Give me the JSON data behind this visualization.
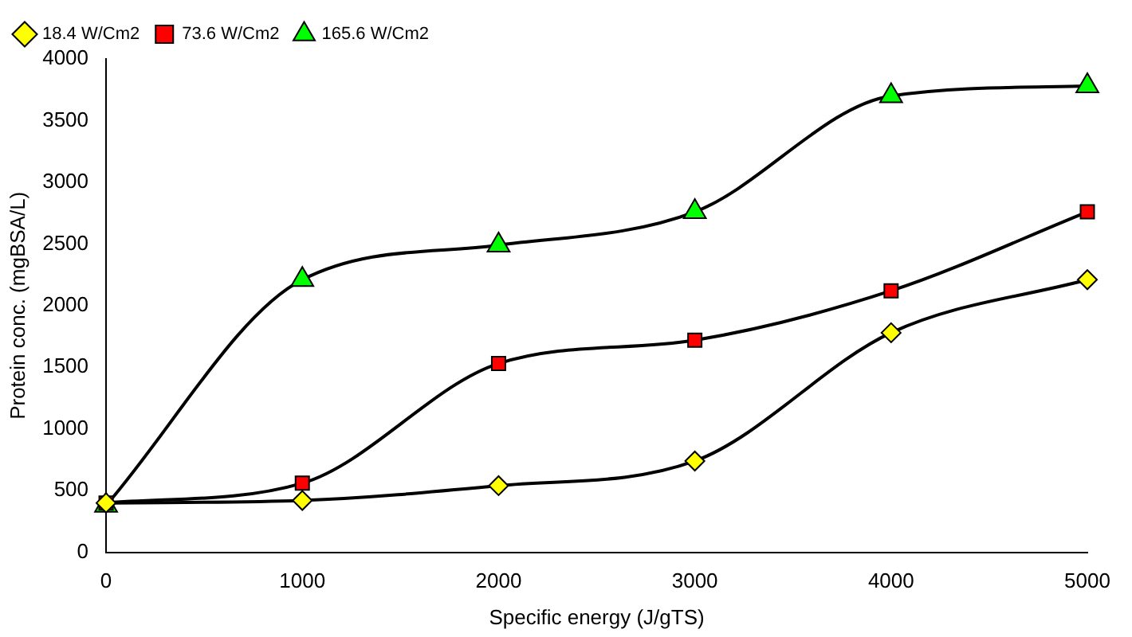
{
  "chart_data": {
    "type": "line",
    "xlabel": "Specific energy (J/gTS)",
    "ylabel": "Protein conc. (mgBSA/L)",
    "x": [
      0,
      1000,
      2000,
      3000,
      4000,
      5000
    ],
    "series": [
      {
        "name": "18.4 W/Cm2",
        "color": "#ffff00",
        "marker": "diamond",
        "values": [
          400,
          420,
          540,
          740,
          1780,
          2210
        ]
      },
      {
        "name": "73.6 W/Cm2",
        "color": "#ff0000",
        "marker": "square",
        "values": [
          400,
          560,
          1530,
          1720,
          2120,
          2760
        ]
      },
      {
        "name": "165.6 W/Cm2",
        "color": "#00ff00",
        "marker": "triangle",
        "values": [
          380,
          2210,
          2490,
          2760,
          3700,
          3780
        ]
      }
    ],
    "xlim": [
      0,
      5000
    ],
    "xticks": [
      0,
      1000,
      2000,
      3000,
      4000,
      5000
    ],
    "ylim": [
      0,
      4000
    ],
    "yticks": [
      0,
      500,
      1000,
      1500,
      2000,
      2500,
      3000,
      3500,
      4000
    ],
    "grid": false,
    "legend": "top left",
    "line_style": "solid"
  }
}
